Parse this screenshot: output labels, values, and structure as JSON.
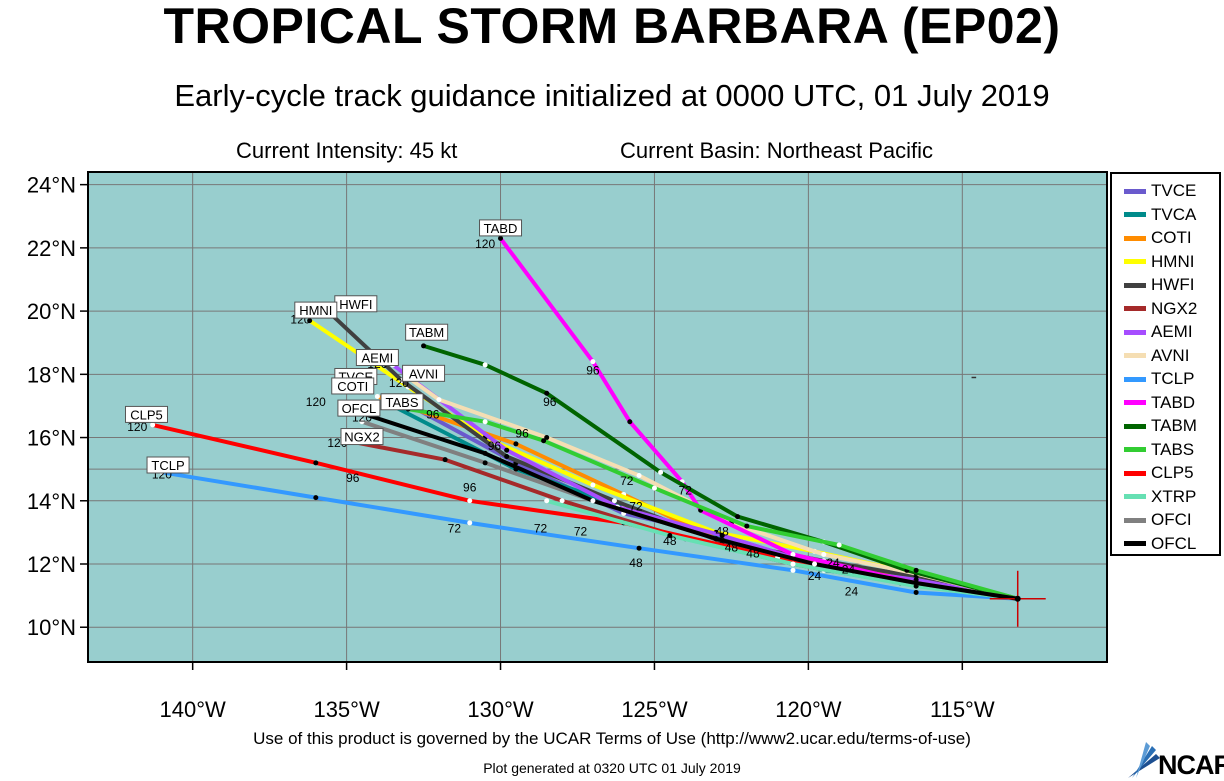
{
  "header": {
    "title": "TROPICAL STORM BARBARA (EP02)",
    "subtitle": "Early-cycle track guidance initialized at 0000 UTC, 01 July 2019",
    "intensity": "Current Intensity: 45 kt",
    "basin": "Current Basin: Northeast Pacific"
  },
  "footer": {
    "terms": "Use of this product is governed by the UCAR Terms of Use (http://www2.ucar.edu/terms-of-use)",
    "generated": "Plot generated at 0320 UTC   01 July 2019",
    "logo_text": "NCAR"
  },
  "colors": {
    "ocean": "#98cece",
    "grid": "#777777"
  },
  "chart_data": {
    "type": "map",
    "lon_range": [
      -143.4,
      -110.3
    ],
    "lat_range": [
      8.9,
      24.4
    ],
    "lat_ticks": [
      {
        "value": 10,
        "label": "10°N"
      },
      {
        "value": 12,
        "label": "12°N"
      },
      {
        "value": 14,
        "label": "14°N"
      },
      {
        "value": 16,
        "label": "16°N"
      },
      {
        "value": 18,
        "label": "18°N"
      },
      {
        "value": 20,
        "label": "20°N"
      },
      {
        "value": 22,
        "label": "22°N"
      },
      {
        "value": 24,
        "label": "24°N"
      }
    ],
    "lon_ticks": [
      {
        "value": -140,
        "label": "140°W"
      },
      {
        "value": -135,
        "label": "135°W"
      },
      {
        "value": -130,
        "label": "130°W"
      },
      {
        "value": -125,
        "label": "125°W"
      },
      {
        "value": -120,
        "label": "120°W"
      },
      {
        "value": -115,
        "label": "115°W"
      }
    ],
    "storm_position": [
      -113.2,
      10.9
    ],
    "hour_labels": [
      "24",
      "48",
      "72",
      "96",
      "120"
    ],
    "series": [
      {
        "name": "TVCE",
        "color": "#6a5acd",
        "points": [
          [
            -113.2,
            10.9
          ],
          [
            -116.5,
            11.5
          ],
          [
            -119.5,
            11.9
          ],
          [
            -122.8,
            12.9
          ],
          [
            -126.0,
            13.6
          ],
          [
            -129.5,
            15.2
          ],
          [
            -133.3,
            17.2
          ]
        ],
        "end_label": "TVCE"
      },
      {
        "name": "TVCA",
        "color": "#008b8b",
        "points": [
          [
            -113.2,
            10.9
          ],
          [
            -116.5,
            11.5
          ],
          [
            -119.5,
            11.8
          ],
          [
            -122.8,
            12.8
          ],
          [
            -126.0,
            13.8
          ],
          [
            -129.5,
            15.0
          ],
          [
            -133.5,
            17.0
          ]
        ],
        "end_label": "TVCA"
      },
      {
        "name": "COTI",
        "color": "#ff8c00",
        "points": [
          [
            -113.2,
            10.9
          ],
          [
            -116.5,
            11.6
          ],
          [
            -119.5,
            12.0
          ],
          [
            -122.8,
            12.7
          ],
          [
            -126.0,
            14.2
          ],
          [
            -129.5,
            15.8
          ],
          [
            -134.0,
            17.3
          ]
        ],
        "end_label": "COTI"
      },
      {
        "name": "HMNI",
        "color": "#ffff00",
        "points": [
          [
            -113.2,
            10.9
          ],
          [
            -116.5,
            11.7
          ],
          [
            -119.8,
            12.4
          ],
          [
            -123.0,
            13.0
          ],
          [
            -127.0,
            14.5
          ],
          [
            -130.5,
            16.0
          ],
          [
            -133.0,
            17.6
          ],
          [
            -136.2,
            19.7
          ]
        ],
        "end_label": "HMNI"
      },
      {
        "name": "HWFI",
        "color": "#404040",
        "points": [
          [
            -113.2,
            10.9
          ],
          [
            -116.5,
            11.6
          ],
          [
            -119.5,
            12.1
          ],
          [
            -122.8,
            12.7
          ],
          [
            -126.3,
            14.0
          ],
          [
            -129.8,
            15.4
          ],
          [
            -133.2,
            17.8
          ],
          [
            -135.5,
            19.9
          ]
        ],
        "end_label": "HWFI"
      },
      {
        "name": "NGX2",
        "color": "#a52a2a",
        "points": [
          [
            -113.2,
            10.9
          ],
          [
            -117.0,
            11.4
          ],
          [
            -120.5,
            12.0
          ],
          [
            -124.0,
            12.8
          ],
          [
            -128.0,
            14.0
          ],
          [
            -131.8,
            15.3
          ],
          [
            -135.0,
            15.9
          ]
        ],
        "end_label": "NGX2"
      },
      {
        "name": "AEMI",
        "color": "#a64dff",
        "points": [
          [
            -113.2,
            10.9
          ],
          [
            -116.5,
            11.5
          ],
          [
            -119.5,
            11.9
          ],
          [
            -122.8,
            12.9
          ],
          [
            -126.2,
            13.8
          ],
          [
            -129.8,
            15.6
          ],
          [
            -133.5,
            18.3
          ]
        ],
        "end_label": "AEMI"
      },
      {
        "name": "AVNI",
        "color": "#f5deb3",
        "points": [
          [
            -113.2,
            10.9
          ],
          [
            -116.5,
            11.7
          ],
          [
            -119.5,
            12.3
          ],
          [
            -122.5,
            13.3
          ],
          [
            -125.5,
            14.8
          ],
          [
            -128.5,
            16.0
          ],
          [
            -132.0,
            17.2
          ],
          [
            -133.0,
            17.9
          ]
        ],
        "end_label": "AVNI"
      },
      {
        "name": "TCLP",
        "color": "#3399ff",
        "points": [
          [
            -113.2,
            10.9
          ],
          [
            -116.5,
            11.1
          ],
          [
            -120.5,
            11.8
          ],
          [
            -125.5,
            12.5
          ],
          [
            -131.0,
            13.3
          ],
          [
            -136.0,
            14.1
          ],
          [
            -141.0,
            14.9
          ]
        ],
        "end_label": "TCLP"
      },
      {
        "name": "TABD",
        "color": "#ff00ff",
        "points": [
          [
            -113.2,
            10.9
          ],
          [
            -116.5,
            11.4
          ],
          [
            -120.5,
            12.3
          ],
          [
            -123.5,
            13.7
          ],
          [
            -124.1,
            14.6
          ],
          [
            -125.8,
            16.5
          ],
          [
            -127.0,
            18.4
          ],
          [
            -130.0,
            22.3
          ]
        ],
        "end_label": "TABD"
      },
      {
        "name": "TABM",
        "color": "#006400",
        "points": [
          [
            -113.2,
            10.9
          ],
          [
            -116.8,
            11.8
          ],
          [
            -119.5,
            12.7
          ],
          [
            -122.3,
            13.5
          ],
          [
            -124.8,
            14.9
          ],
          [
            -128.5,
            17.4
          ],
          [
            -130.5,
            18.3
          ],
          [
            -132.5,
            18.9
          ]
        ],
        "end_label": "TABM"
      },
      {
        "name": "TABS",
        "color": "#32cd32",
        "points": [
          [
            -113.2,
            10.9
          ],
          [
            -116.5,
            11.8
          ],
          [
            -119.0,
            12.6
          ],
          [
            -122.0,
            13.2
          ],
          [
            -125.0,
            14.4
          ],
          [
            -128.6,
            15.9
          ],
          [
            -130.5,
            16.5
          ],
          [
            -133.0,
            16.9
          ]
        ],
        "end_label": "TABS"
      },
      {
        "name": "CLP5",
        "color": "#ff0000",
        "points": [
          [
            -113.2,
            10.9
          ],
          [
            -117.0,
            11.4
          ],
          [
            -121.0,
            12.2
          ],
          [
            -126.0,
            13.3
          ],
          [
            -131.0,
            14.0
          ],
          [
            -136.0,
            15.2
          ],
          [
            -141.3,
            16.4
          ]
        ],
        "end_label": "CLP5"
      },
      {
        "name": "XTRP",
        "color": "#66e0b3",
        "points": [
          [
            -113.2,
            10.9
          ],
          [
            -116.5,
            11.3
          ],
          [
            -120.5,
            12.0
          ],
          [
            -124.5,
            12.9
          ],
          [
            -128.5,
            14.0
          ]
        ],
        "end_label": ""
      },
      {
        "name": "OFCI",
        "color": "#808080",
        "points": [
          [
            -113.2,
            10.9
          ],
          [
            -116.5,
            11.4
          ],
          [
            -119.8,
            12.0
          ],
          [
            -123.0,
            12.8
          ],
          [
            -127.0,
            14.0
          ],
          [
            -130.5,
            15.2
          ],
          [
            -134.5,
            16.5
          ]
        ],
        "end_label": "OFCI"
      },
      {
        "name": "OFCL",
        "color": "#000000",
        "points": [
          [
            -113.2,
            10.9
          ],
          [
            -116.5,
            11.4
          ],
          [
            -119.8,
            12.0
          ],
          [
            -123.0,
            12.8
          ],
          [
            -127.0,
            14.0
          ],
          [
            -130.5,
            15.5
          ],
          [
            -134.6,
            16.8
          ]
        ],
        "end_label": "OFCL"
      }
    ],
    "label_positions": [
      {
        "label": "TABD",
        "series": "TABD"
      },
      {
        "label": "HWFI",
        "series": "HWFI"
      },
      {
        "label": "HMNI",
        "series": "HMNI"
      },
      {
        "label": "TABM",
        "series": "TABM"
      },
      {
        "label": "AEMI",
        "series": "AEMI"
      },
      {
        "label": "AVNI",
        "series": "AVNI"
      },
      {
        "label": "TVCE",
        "series": "TVCE"
      },
      {
        "label": "COTI",
        "series": "COTI"
      },
      {
        "label": "TABS",
        "series": "TABS"
      },
      {
        "label": "OFCL",
        "series": "OFCL"
      },
      {
        "label": "NGX2",
        "series": "NGX2"
      },
      {
        "label": "CLP5",
        "series": "CLP5"
      },
      {
        "label": "TCLP",
        "series": "TCLP"
      }
    ]
  },
  "legend": {
    "items": [
      "TVCE",
      "TVCA",
      "COTI",
      "HMNI",
      "HWFI",
      "NGX2",
      "AEMI",
      "AVNI",
      "TCLP",
      "TABD",
      "TABM",
      "TABS",
      "CLP5",
      "XTRP",
      "OFCI",
      "OFCL"
    ]
  }
}
